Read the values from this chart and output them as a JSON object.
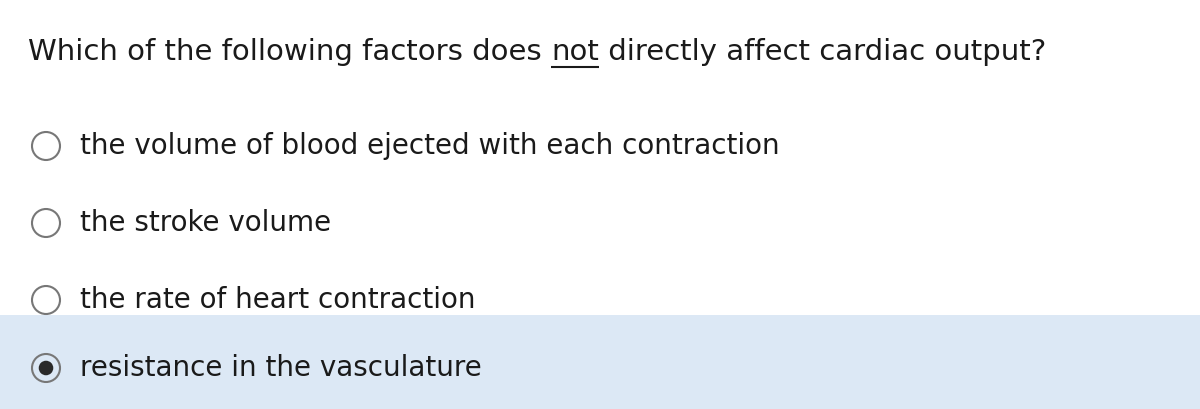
{
  "title_parts": [
    {
      "text": "Which of the following factors does ",
      "style": "normal"
    },
    {
      "text": "not",
      "style": "underline"
    },
    {
      "text": " directly affect cardiac output?",
      "style": "normal"
    }
  ],
  "options": [
    {
      "text": "the volume of blood ejected with each contraction",
      "selected": false
    },
    {
      "text": "the stroke volume",
      "selected": false
    },
    {
      "text": "the rate of heart contraction",
      "selected": false
    },
    {
      "text": "resistance in the vasculature",
      "selected": true
    }
  ],
  "bg_color": "#ffffff",
  "highlight_color": "#dce8f5",
  "title_fontsize": 21,
  "option_fontsize": 20,
  "text_color": "#1a1a1a",
  "circle_edge_color": "#777777",
  "circle_linewidth": 1.5,
  "selected_fill": "#2a2a2a",
  "font_family": "DejaVu Sans"
}
